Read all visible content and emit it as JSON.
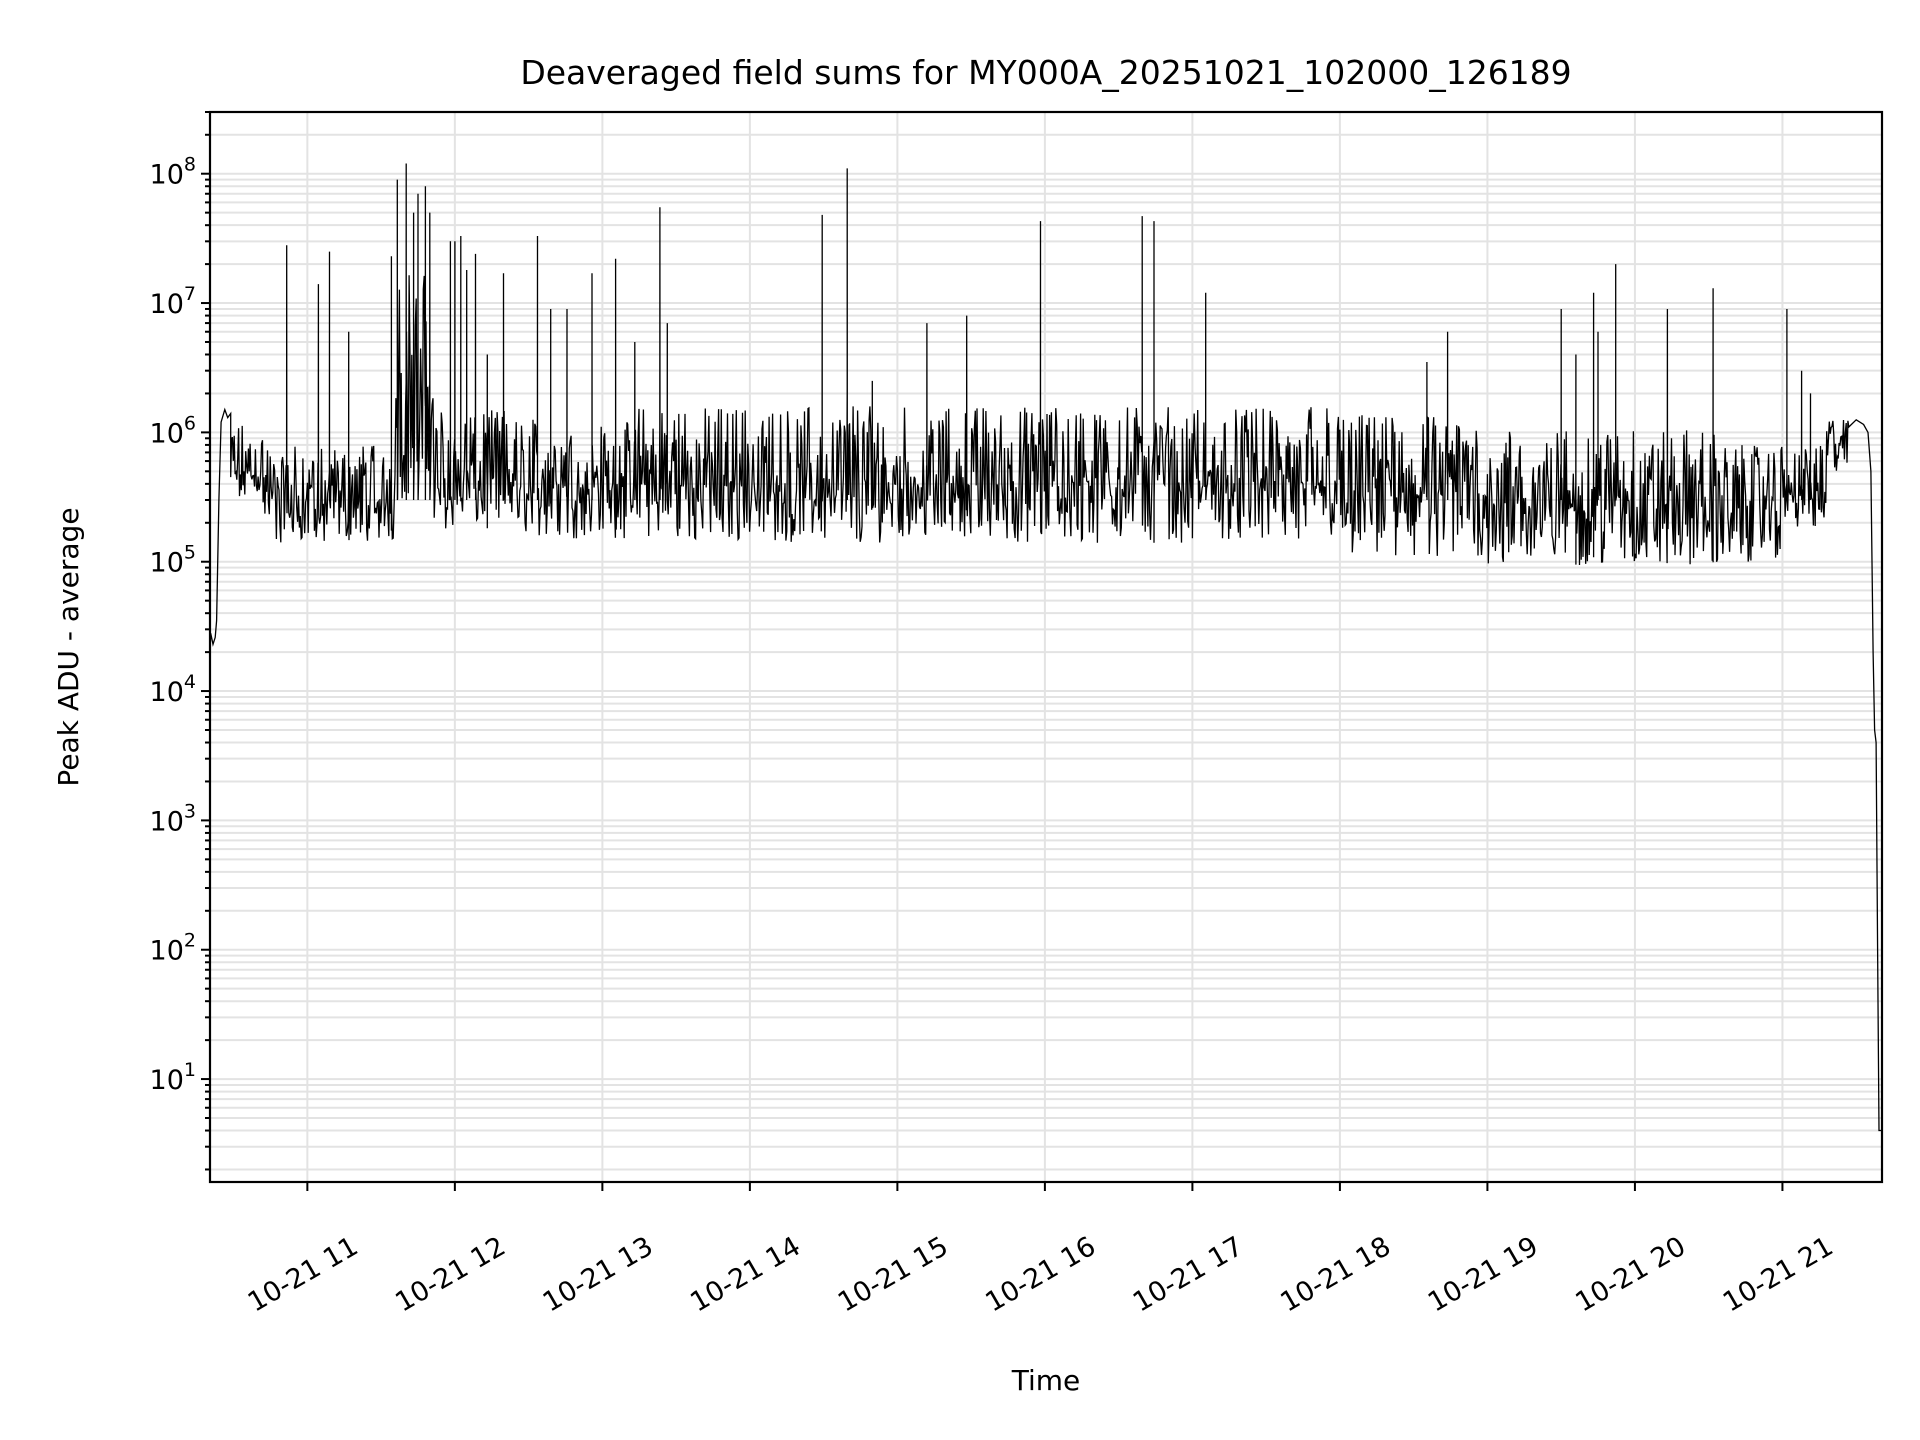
{
  "chart_data": {
    "type": "line",
    "title": "Deaveraged field sums for MY000A_20251021_102000_126189",
    "xlabel": "Time",
    "ylabel": "Peak ADU - average",
    "x_units": "hours of day 2025-10-21",
    "xlim": [
      10.34,
      21.675
    ],
    "ylim": [
      1.6,
      300000000.0
    ],
    "yscale": "log",
    "grid": true,
    "x_ticks": [
      {
        "value": 11,
        "label": "10-21 11"
      },
      {
        "value": 12,
        "label": "10-21 12"
      },
      {
        "value": 13,
        "label": "10-21 13"
      },
      {
        "value": 14,
        "label": "10-21 14"
      },
      {
        "value": 15,
        "label": "10-21 15"
      },
      {
        "value": 16,
        "label": "10-21 16"
      },
      {
        "value": 17,
        "label": "10-21 17"
      },
      {
        "value": 18,
        "label": "10-21 18"
      },
      {
        "value": 19,
        "label": "10-21 19"
      },
      {
        "value": 20,
        "label": "10-21 20"
      },
      {
        "value": 21,
        "label": "10-21 21"
      }
    ],
    "y_ticks": [
      {
        "value": 10,
        "base": "10",
        "exp": "1"
      },
      {
        "value": 100,
        "base": "10",
        "exp": "2"
      },
      {
        "value": 1000,
        "base": "10",
        "exp": "3"
      },
      {
        "value": 10000,
        "base": "10",
        "exp": "4"
      },
      {
        "value": 100000,
        "base": "10",
        "exp": "5"
      },
      {
        "value": 1000000,
        "base": "10",
        "exp": "6"
      },
      {
        "value": 10000000,
        "base": "10",
        "exp": "7"
      },
      {
        "value": 100000000,
        "base": "10",
        "exp": "8"
      }
    ],
    "series": [
      {
        "name": "Peak ADU - average",
        "color": "#000000",
        "start_points": [
          [
            10.34,
            20000.0
          ],
          [
            10.345,
            28000.0
          ],
          [
            10.36,
            23000.0
          ],
          [
            10.375,
            26000.0
          ],
          [
            10.385,
            35000.0
          ],
          [
            10.4,
            300000.0
          ],
          [
            10.415,
            1200000.0
          ],
          [
            10.44,
            1500000.0
          ],
          [
            10.46,
            1300000.0
          ],
          [
            10.48,
            1400000.0
          ]
        ],
        "noise_envelope": [
          [
            10.48,
            10.7,
            300000.0,
            1200000.0
          ],
          [
            10.7,
            11.6,
            140000.0,
            800000.0
          ],
          [
            11.6,
            11.86,
            300000.0,
            20000000.0
          ],
          [
            11.86,
            12.35,
            180000.0,
            1500000.0
          ],
          [
            12.35,
            12.8,
            160000.0,
            1300000.0
          ],
          [
            12.8,
            13.2,
            150000.0,
            1200000.0
          ],
          [
            13.2,
            17.0,
            140000.0,
            1600000.0
          ],
          [
            17.0,
            18.0,
            140000.0,
            1600000.0
          ],
          [
            18.0,
            19.0,
            110000.0,
            1400000.0
          ],
          [
            19.0,
            20.6,
            90000.0,
            1100000.0
          ],
          [
            20.6,
            21.0,
            100000.0,
            800000.0
          ],
          [
            21.0,
            21.3,
            180000.0,
            800000.0
          ],
          [
            21.3,
            21.45,
            500000.0,
            1300000.0
          ]
        ],
        "end_points": [
          [
            21.45,
            1100000.0
          ],
          [
            21.5,
            1250000.0
          ],
          [
            21.55,
            1150000.0
          ],
          [
            21.58,
            1000000.0
          ],
          [
            21.6,
            500000.0
          ],
          [
            21.615,
            20000.0
          ],
          [
            21.625,
            5000.0
          ],
          [
            21.635,
            4000.0
          ],
          [
            21.645,
            100.0
          ],
          [
            21.655,
            4
          ],
          [
            21.675,
            4
          ]
        ],
        "spikes": [
          [
            10.86,
            28000000.0
          ],
          [
            11.075,
            14000000.0
          ],
          [
            11.15,
            25000000.0
          ],
          [
            11.28,
            6000000.0
          ],
          [
            11.57,
            23000000.0
          ],
          [
            11.61,
            90000000.0
          ],
          [
            11.67,
            120000000.0
          ],
          [
            11.72,
            50000000.0
          ],
          [
            11.75,
            70000000.0
          ],
          [
            11.8,
            80000000.0
          ],
          [
            11.83,
            50000000.0
          ],
          [
            11.97,
            30000000.0
          ],
          [
            12.0,
            30000000.0
          ],
          [
            12.04,
            33000000.0
          ],
          [
            12.08,
            18000000.0
          ],
          [
            12.14,
            24000000.0
          ],
          [
            12.22,
            4000000.0
          ],
          [
            12.33,
            17000000.0
          ],
          [
            12.56,
            33000000.0
          ],
          [
            12.65,
            9000000.0
          ],
          [
            12.76,
            9000000.0
          ],
          [
            12.93,
            17000000.0
          ],
          [
            13.09,
            22000000.0
          ],
          [
            13.22,
            5000000.0
          ],
          [
            13.39,
            55000000.0
          ],
          [
            13.44,
            7000000.0
          ],
          [
            14.49,
            48000000.0
          ],
          [
            14.66,
            110000000.0
          ],
          [
            14.83,
            2500000.0
          ],
          [
            15.2,
            7000000.0
          ],
          [
            15.47,
            8000000.0
          ],
          [
            15.97,
            43000000.0
          ],
          [
            16.66,
            47000000.0
          ],
          [
            16.74,
            43000000.0
          ],
          [
            17.09,
            12000000.0
          ],
          [
            18.59,
            3500000.0
          ],
          [
            18.73,
            6000000.0
          ],
          [
            19.5,
            9000000.0
          ],
          [
            19.6,
            4000000.0
          ],
          [
            19.72,
            12000000.0
          ],
          [
            19.75,
            6000000.0
          ],
          [
            19.87,
            20000000.0
          ],
          [
            20.22,
            9000000.0
          ],
          [
            20.53,
            13000000.0
          ],
          [
            21.03,
            9000000.0
          ],
          [
            21.13,
            3000000.0
          ],
          [
            21.19,
            2000000.0
          ]
        ]
      }
    ]
  }
}
